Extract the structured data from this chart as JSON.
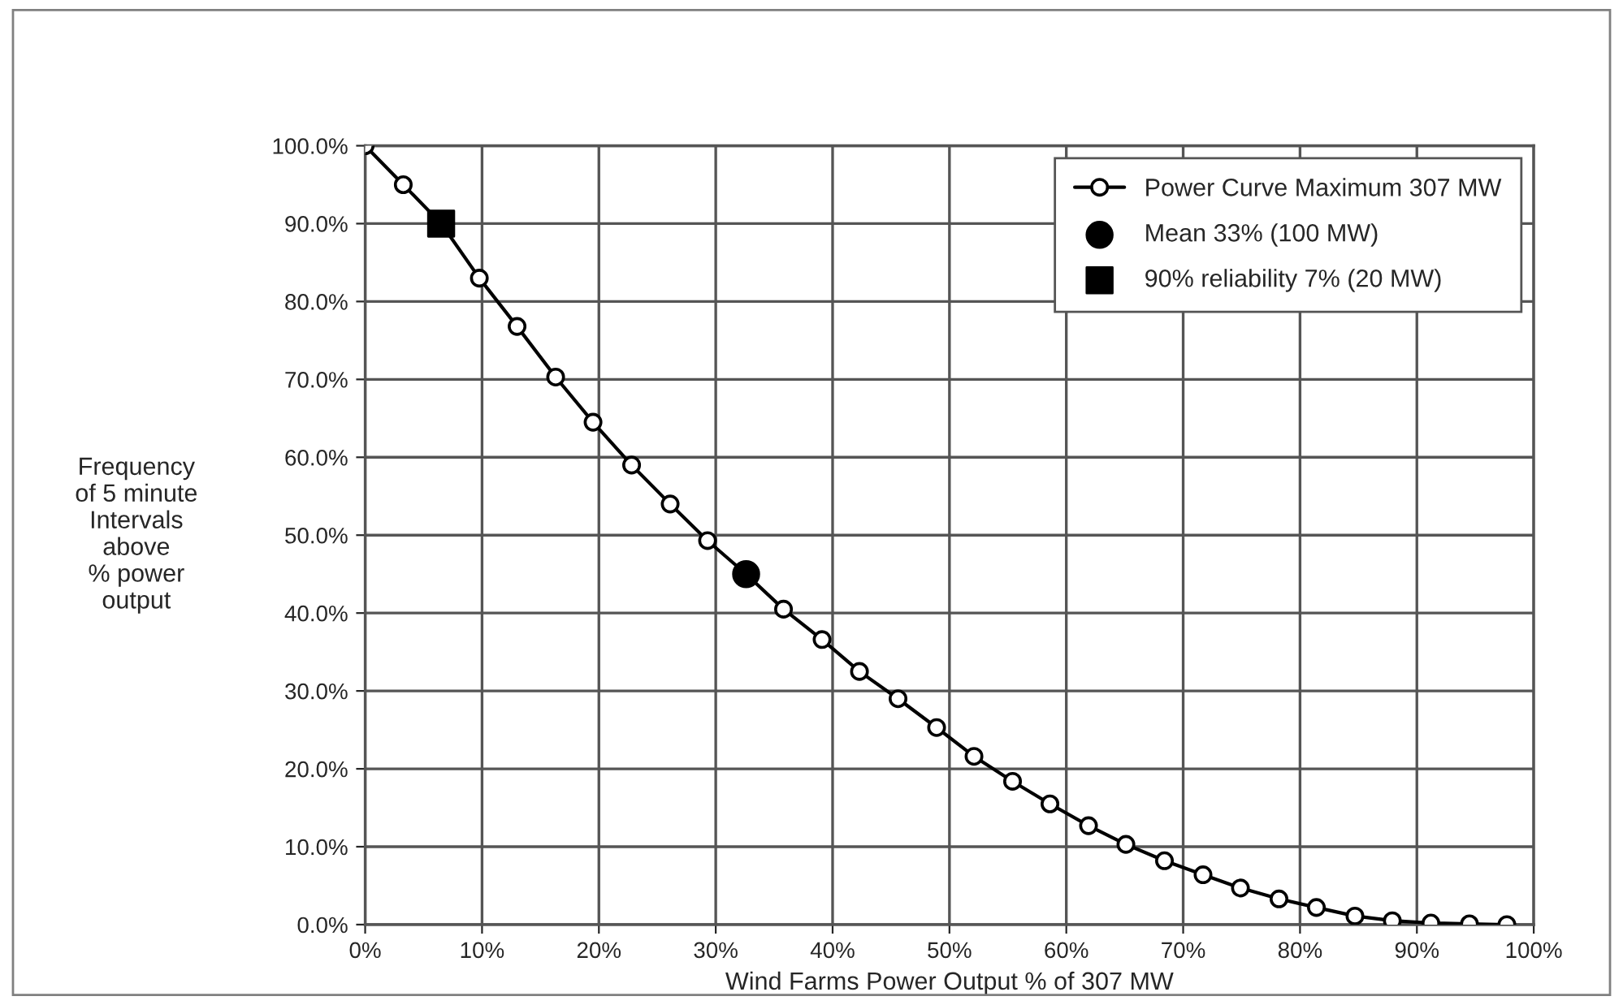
{
  "chart_data": {
    "type": "line",
    "xlabel": "Wind Farms Power Output % of 307 MW",
    "ylabel": "Frequency\nof 5 minute\nIntervals\nabove\n% power\noutput",
    "series": [
      {
        "name": "Power Curve Maximum 307 MW",
        "color": "#000000",
        "marker": "circle",
        "x": [
          0,
          3.26,
          6.51,
          9.77,
          13.0,
          16.3,
          19.5,
          22.8,
          26.1,
          29.3,
          32.6,
          35.8,
          39.1,
          42.3,
          45.6,
          48.9,
          52.1,
          55.4,
          58.6,
          61.9,
          65.1,
          68.4,
          71.7,
          74.9,
          78.2,
          81.4,
          84.7,
          87.9,
          91.2,
          94.5,
          97.7
        ],
        "values": [
          100,
          95,
          90,
          83,
          76.8,
          70.3,
          64.5,
          59,
          54,
          49.3,
          45,
          40.5,
          36.6,
          32.5,
          29,
          25.3,
          21.6,
          18.4,
          15.5,
          12.7,
          10.3,
          8.2,
          6.4,
          4.7,
          3.3,
          2.2,
          1.1,
          0.5,
          0.2,
          0.1,
          0
        ]
      },
      {
        "name": "Mean 33% (100 MW)",
        "type": "scatter",
        "color": "#000000",
        "marker": "circle",
        "x": [
          32.6
        ],
        "values": [
          45
        ]
      },
      {
        "name": "90% reliability 7% (20 MW)",
        "type": "scatter",
        "color": "#000000",
        "marker": "square",
        "x": [
          6.5
        ],
        "values": [
          90
        ]
      }
    ],
    "xlim": [
      0,
      100
    ],
    "xticks": [
      {
        "value": 0,
        "label": "0%"
      },
      {
        "value": 10,
        "label": "10%"
      },
      {
        "value": 20,
        "label": "20%"
      },
      {
        "value": 30,
        "label": "30%"
      },
      {
        "value": 40,
        "label": "40%"
      },
      {
        "value": 50,
        "label": "50%"
      },
      {
        "value": 60,
        "label": "60%"
      },
      {
        "value": 70,
        "label": "70%"
      },
      {
        "value": 80,
        "label": "80%"
      },
      {
        "value": 90,
        "label": "90%"
      },
      {
        "value": 100,
        "label": "100%"
      }
    ],
    "ylim": [
      0,
      100
    ],
    "yticks": [
      {
        "value": 0,
        "label": "0.0%"
      },
      {
        "value": 10,
        "label": "10.0%"
      },
      {
        "value": 20,
        "label": "20.0%"
      },
      {
        "value": 30,
        "label": "30.0%"
      },
      {
        "value": 40,
        "label": "40.0%"
      },
      {
        "value": 50,
        "label": "50.0%"
      },
      {
        "value": 60,
        "label": "60.0%"
      },
      {
        "value": 70,
        "label": "70.0%"
      },
      {
        "value": 80,
        "label": "80.0%"
      },
      {
        "value": 90,
        "label": "90.0%"
      },
      {
        "value": 100,
        "label": "100.0%"
      }
    ],
    "grid": true,
    "legend": "top right",
    "line_style": "solid"
  }
}
